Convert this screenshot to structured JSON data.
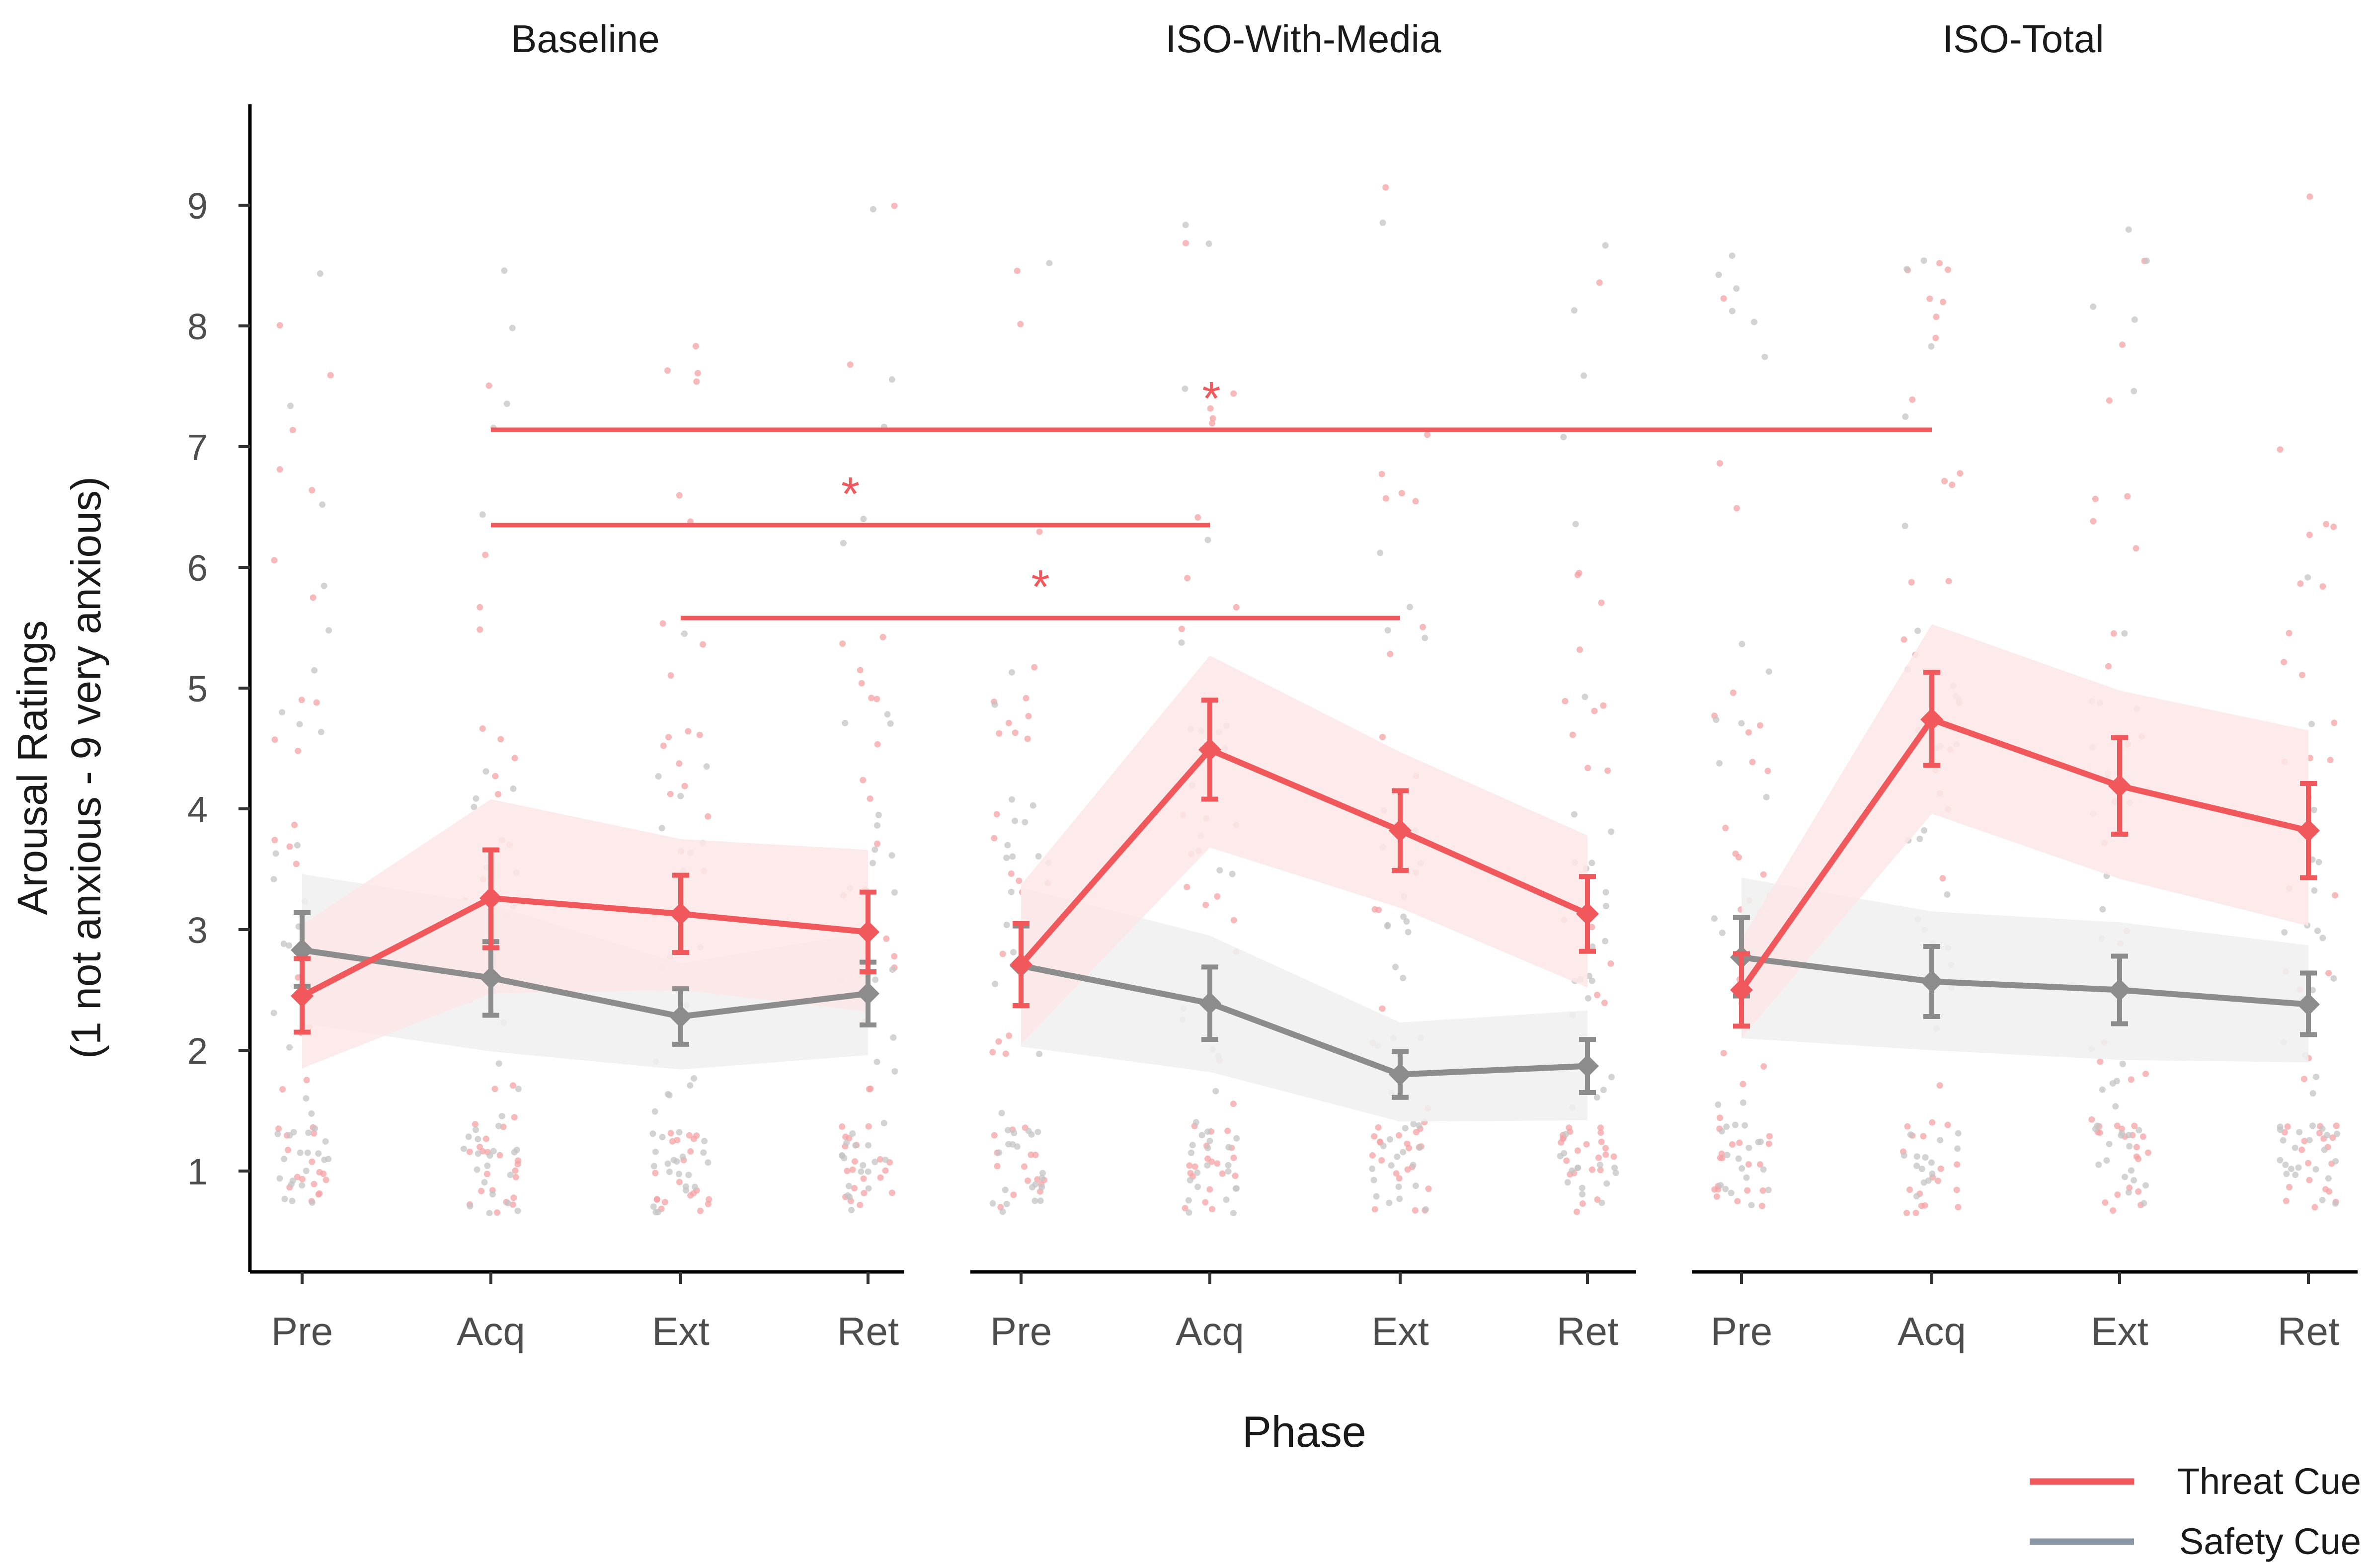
{
  "chart_data": {
    "type": "line",
    "categories": [
      "Pre",
      "Acq",
      "Ext",
      "Ret"
    ],
    "xlabel": "Phase",
    "ylabel": [
      "Arousal Ratings",
      "(1 not anxious - 9 very anxious)"
    ],
    "ylim": [
      0.15,
      9.8
    ],
    "yticks": [
      1,
      2,
      3,
      4,
      5,
      6,
      7,
      8,
      9
    ],
    "grid": false,
    "legend_position": "bottom-right",
    "colors": {
      "threat": "#f0585c",
      "safety": "#8c8c8c",
      "legend_safety": "#8a96a3"
    },
    "panels": [
      {
        "title": "Baseline",
        "series": [
          {
            "name": "Threat Cue",
            "mean": [
              2.45,
              3.26,
              3.13,
              2.98
            ],
            "se_low": [
              2.15,
              2.85,
              2.81,
              2.65
            ],
            "se_high": [
              2.76,
              3.66,
              3.45,
              3.31
            ],
            "ci_low": [
              1.85,
              2.47,
              2.5,
              2.32
            ],
            "ci_high": [
              3.04,
              4.08,
              3.75,
              3.66
            ]
          },
          {
            "name": "Safety Cue",
            "mean": [
              2.83,
              2.6,
              2.28,
              2.47
            ],
            "se_low": [
              2.53,
              2.29,
              2.05,
              2.21
            ],
            "se_high": [
              3.14,
              2.9,
              2.51,
              2.73
            ],
            "ci_low": [
              2.22,
              1.99,
              1.84,
              1.96
            ],
            "ci_high": [
              3.46,
              3.21,
              2.72,
              2.98
            ]
          }
        ]
      },
      {
        "title": "ISO-With-Media",
        "series": [
          {
            "name": "Threat Cue",
            "mean": [
              2.71,
              4.49,
              3.82,
              3.13
            ],
            "se_low": [
              2.37,
              4.08,
              3.49,
              2.82
            ],
            "se_high": [
              3.05,
              4.9,
              4.15,
              3.44
            ],
            "ci_low": [
              2.05,
              3.68,
              3.18,
              2.52
            ],
            "ci_high": [
              3.37,
              5.27,
              4.47,
              3.78
            ]
          },
          {
            "name": "Safety Cue",
            "mean": [
              2.7,
              2.39,
              1.8,
              1.87
            ],
            "se_low": [
              2.37,
              2.09,
              1.61,
              1.65
            ],
            "se_high": [
              3.03,
              2.69,
              1.99,
              2.09
            ],
            "ci_low": [
              2.03,
              1.82,
              1.41,
              1.42
            ],
            "ci_high": [
              3.35,
              2.95,
              2.23,
              2.33
            ]
          }
        ]
      },
      {
        "title": "ISO-Total",
        "series": [
          {
            "name": "Threat Cue",
            "mean": [
              2.5,
              4.74,
              4.19,
              3.82
            ],
            "se_low": [
              2.2,
              4.36,
              3.79,
              3.43
            ],
            "se_high": [
              2.8,
              5.13,
              4.59,
              4.21
            ],
            "ci_low": [
              2.1,
              3.96,
              3.42,
              3.03
            ],
            "ci_high": [
              2.92,
              5.53,
              4.98,
              4.65
            ]
          },
          {
            "name": "Safety Cue",
            "mean": [
              2.77,
              2.57,
              2.5,
              2.38
            ],
            "se_low": [
              2.45,
              2.28,
              2.22,
              2.13
            ],
            "se_high": [
              3.1,
              2.86,
              2.78,
              2.64
            ],
            "ci_low": [
              2.1,
              2.0,
              1.92,
              1.9
            ],
            "ci_high": [
              3.43,
              3.15,
              3.06,
              2.87
            ]
          }
        ]
      }
    ],
    "significance": [
      {
        "from_panel": 0,
        "from_phase": "Acq",
        "to_panel": 2,
        "to_phase": "Acq",
        "y": 7.14,
        "label": "*"
      },
      {
        "from_panel": 0,
        "from_phase": "Acq",
        "to_panel": 1,
        "to_phase": "Acq",
        "y": 6.35,
        "label": "*"
      },
      {
        "from_panel": 0,
        "from_phase": "Ext",
        "to_panel": 1,
        "to_phase": "Ext",
        "y": 5.58,
        "label": "*"
      }
    ],
    "legend": [
      "Threat Cue",
      "Safety Cue"
    ]
  }
}
